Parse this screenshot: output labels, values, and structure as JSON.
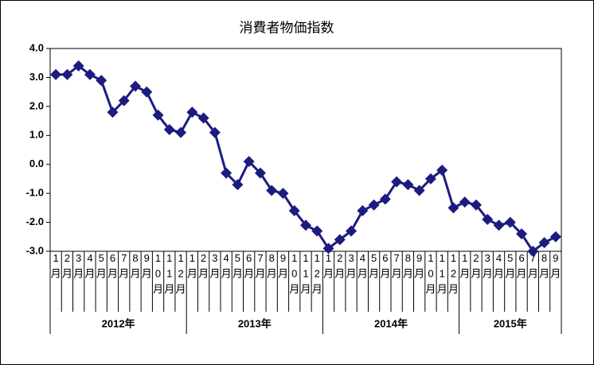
{
  "chart_data": {
    "type": "line",
    "title": "消費者物価指数",
    "categories": [
      "1月",
      "2月",
      "3月",
      "4月",
      "5月",
      "6月",
      "7月",
      "8月",
      "9月",
      "10月",
      "11月",
      "12月",
      "1月",
      "2月",
      "3月",
      "4月",
      "5月",
      "6月",
      "7月",
      "8月",
      "9月",
      "10月",
      "11月",
      "12月",
      "1月",
      "2月",
      "3月",
      "4月",
      "5月",
      "6月",
      "7月",
      "8月",
      "9月",
      "10月",
      "11月",
      "12月",
      "1月",
      "2月",
      "3月",
      "4月",
      "5月",
      "6月",
      "7月",
      "8月",
      "9月"
    ],
    "x_groups": [
      "2012年",
      "2013年",
      "2014年",
      "2015年"
    ],
    "series": [
      {
        "color": "#1c1c80",
        "values": [
          3.1,
          3.1,
          3.4,
          3.1,
          2.9,
          1.8,
          2.2,
          2.7,
          2.5,
          1.7,
          1.2,
          1.1,
          1.8,
          1.6,
          1.1,
          -0.3,
          -0.7,
          0.1,
          -0.3,
          -0.9,
          -1.0,
          -1.6,
          -2.1,
          -2.3,
          -2.9,
          -2.6,
          -2.3,
          -1.6,
          -1.4,
          -1.2,
          -0.6,
          -0.7,
          -0.9,
          -0.5,
          -0.2,
          -1.5,
          -1.3,
          -1.4,
          -1.9,
          -2.1,
          -2.0,
          -2.4,
          -3.0,
          -2.7,
          -2.5
        ]
      }
    ],
    "ylim": [
      -3,
      4
    ],
    "yticks": [
      {
        "value": -3,
        "label": "-3.0"
      },
      {
        "value": -2,
        "label": "-2.0"
      },
      {
        "value": -1,
        "label": "-1.0"
      },
      {
        "value": 0,
        "label": "0.0"
      },
      {
        "value": 1,
        "label": "1.0"
      },
      {
        "value": 2,
        "label": "2.0"
      },
      {
        "value": 3,
        "label": "3.0"
      },
      {
        "value": 4,
        "label": "4.0"
      }
    ],
    "grid": false
  }
}
